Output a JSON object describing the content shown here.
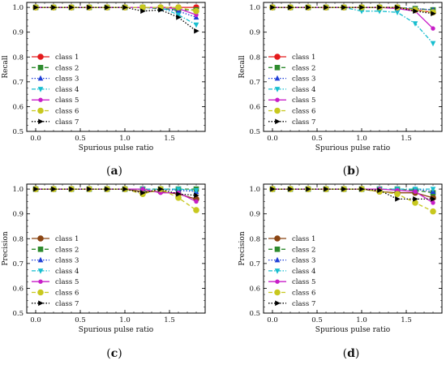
{
  "figure": {
    "captions": [
      "(a)",
      "(b)",
      "(c)",
      "(d)"
    ]
  },
  "chart_data": [
    {
      "type": "line",
      "panel": "a",
      "xlabel": "Spurious pulse ratio",
      "ylabel": "Recall",
      "xlim": [
        -0.1,
        1.9
      ],
      "ylim": [
        0.5,
        1.02
      ],
      "xticks": [
        0.0,
        0.5,
        1.0,
        1.5
      ],
      "yticks": [
        0.5,
        0.6,
        0.7,
        0.8,
        0.9,
        1.0
      ],
      "x": [
        0.0,
        0.2,
        0.4,
        0.6,
        0.8,
        1.0,
        1.2,
        1.4,
        1.6,
        1.8
      ],
      "legend_position": "lower-left",
      "series": [
        {
          "name": "class 1",
          "color": "#e41a1c",
          "marker": "circle",
          "dash": "solid",
          "values": [
            1,
            1,
            1,
            1,
            1,
            1,
            1,
            1,
            1,
            1
          ]
        },
        {
          "name": "class 2",
          "color": "#2e8b2e",
          "marker": "square",
          "dash": "dashed",
          "values": [
            1,
            1,
            1,
            1,
            1,
            1,
            1,
            0.995,
            0.99,
            0.99
          ]
        },
        {
          "name": "class 3",
          "color": "#1f3fd6",
          "marker": "triangle-up",
          "dash": "dotted",
          "values": [
            1,
            1,
            1,
            1,
            1,
            1,
            1,
            0.995,
            0.985,
            0.96
          ]
        },
        {
          "name": "class 4",
          "color": "#17becf",
          "marker": "triangle-down",
          "dash": "dashdot",
          "values": [
            1,
            1,
            1,
            1,
            1,
            1,
            1,
            1,
            0.97,
            0.93
          ]
        },
        {
          "name": "class 5",
          "color": "#c81ec8",
          "marker": "dot",
          "dash": "solid",
          "values": [
            1,
            1,
            1,
            1,
            1,
            1,
            1,
            1,
            0.995,
            0.97
          ]
        },
        {
          "name": "class 6",
          "color": "#c8c81e",
          "marker": "circle",
          "dash": "dashed",
          "values": [
            1,
            1,
            1,
            1,
            1,
            1,
            1,
            1,
            1,
            0.985
          ]
        },
        {
          "name": "class 7",
          "color": "#000000",
          "marker": "triangle-right",
          "dash": "dotted",
          "values": [
            1,
            1,
            1,
            1,
            1,
            1,
            0.985,
            0.99,
            0.96,
            0.905
          ]
        }
      ]
    },
    {
      "type": "line",
      "panel": "b",
      "xlabel": "Spurious pulse ratio",
      "ylabel": "Recall",
      "xlim": [
        -0.1,
        1.9
      ],
      "ylim": [
        0.5,
        1.02
      ],
      "xticks": [
        0.0,
        0.5,
        1.0,
        1.5
      ],
      "yticks": [
        0.5,
        0.6,
        0.7,
        0.8,
        0.9,
        1.0
      ],
      "x": [
        0.0,
        0.2,
        0.4,
        0.6,
        0.8,
        1.0,
        1.2,
        1.4,
        1.6,
        1.8
      ],
      "legend_position": "lower-left",
      "series": [
        {
          "name": "class 1",
          "color": "#e41a1c",
          "marker": "circle",
          "dash": "solid",
          "values": [
            1,
            1,
            1,
            1,
            1,
            1,
            1,
            1,
            0.99,
            0.98
          ]
        },
        {
          "name": "class 2",
          "color": "#2e8b2e",
          "marker": "square",
          "dash": "dashed",
          "values": [
            1,
            1,
            1,
            1,
            1,
            1,
            1,
            1,
            0.995,
            0.99
          ]
        },
        {
          "name": "class 3",
          "color": "#1f3fd6",
          "marker": "triangle-up",
          "dash": "dotted",
          "values": [
            1,
            1,
            1,
            1,
            1,
            1,
            1,
            1,
            0.995,
            0.99
          ]
        },
        {
          "name": "class 4",
          "color": "#17becf",
          "marker": "triangle-down",
          "dash": "dashdot",
          "values": [
            1,
            1,
            1,
            1,
            1,
            0.985,
            0.985,
            0.98,
            0.935,
            0.855
          ]
        },
        {
          "name": "class 5",
          "color": "#c81ec8",
          "marker": "dot",
          "dash": "solid",
          "values": [
            1,
            1,
            1,
            1,
            1,
            1,
            1,
            0.995,
            0.985,
            0.915
          ]
        },
        {
          "name": "class 6",
          "color": "#c8c81e",
          "marker": "circle",
          "dash": "dashed",
          "values": [
            1,
            1,
            1,
            1,
            1,
            1,
            1,
            1,
            0.99,
            0.98
          ]
        },
        {
          "name": "class 7",
          "color": "#000000",
          "marker": "triangle-right",
          "dash": "dotted",
          "values": [
            1,
            1,
            1,
            1,
            1,
            1,
            1,
            1,
            0.985,
            0.975
          ]
        }
      ]
    },
    {
      "type": "line",
      "panel": "c",
      "xlabel": "Spurious pulse ratio",
      "ylabel": "Precision",
      "xlim": [
        -0.1,
        1.9
      ],
      "ylim": [
        0.5,
        1.02
      ],
      "xticks": [
        0.0,
        0.5,
        1.0,
        1.5
      ],
      "yticks": [
        0.5,
        0.6,
        0.7,
        0.8,
        0.9,
        1.0
      ],
      "x": [
        0.0,
        0.2,
        0.4,
        0.6,
        0.8,
        1.0,
        1.2,
        1.4,
        1.6,
        1.8
      ],
      "legend_position": "lower-left",
      "series": [
        {
          "name": "class 1",
          "color": "#8b4513",
          "marker": "circle",
          "dash": "solid",
          "values": [
            1,
            1,
            1,
            1,
            1,
            1,
            0.99,
            0.99,
            0.98,
            0.96
          ]
        },
        {
          "name": "class 2",
          "color": "#2e8b2e",
          "marker": "square",
          "dash": "dashed",
          "values": [
            1,
            1,
            1,
            1,
            1,
            1,
            1,
            1,
            1,
            1
          ]
        },
        {
          "name": "class 3",
          "color": "#1f3fd6",
          "marker": "triangle-up",
          "dash": "dotted",
          "values": [
            1,
            1,
            1,
            1,
            1,
            1,
            1,
            1,
            0.995,
            0.99
          ]
        },
        {
          "name": "class 4",
          "color": "#17becf",
          "marker": "triangle-down",
          "dash": "dashdot",
          "values": [
            1,
            1,
            1,
            1,
            1,
            1,
            1,
            1,
            1,
            0.995
          ]
        },
        {
          "name": "class 5",
          "color": "#c81ec8",
          "marker": "dot",
          "dash": "solid",
          "values": [
            1,
            1,
            1,
            1,
            1,
            1,
            1,
            0.985,
            0.985,
            0.95
          ]
        },
        {
          "name": "class 6",
          "color": "#c8c81e",
          "marker": "circle",
          "dash": "dashed",
          "values": [
            1,
            1,
            1,
            1,
            1,
            1,
            0.98,
            1,
            0.965,
            0.915
          ]
        },
        {
          "name": "class 7",
          "color": "#000000",
          "marker": "triangle-right",
          "dash": "dotted",
          "values": [
            1,
            1,
            1,
            1,
            1,
            1,
            0.985,
            1,
            0.98,
            0.975
          ]
        }
      ]
    },
    {
      "type": "line",
      "panel": "d",
      "xlabel": "Spurious pulse ratio",
      "ylabel": "Precision",
      "xlim": [
        -0.1,
        1.9
      ],
      "ylim": [
        0.5,
        1.02
      ],
      "xticks": [
        0.0,
        0.5,
        1.0,
        1.5
      ],
      "yticks": [
        0.5,
        0.6,
        0.7,
        0.8,
        0.9,
        1.0
      ],
      "x": [
        0.0,
        0.2,
        0.4,
        0.6,
        0.8,
        1.0,
        1.2,
        1.4,
        1.6,
        1.8
      ],
      "legend_position": "lower-left",
      "series": [
        {
          "name": "class 1",
          "color": "#8b4513",
          "marker": "circle",
          "dash": "solid",
          "values": [
            1,
            1,
            1,
            1,
            1,
            1,
            0.99,
            0.985,
            0.985,
            0.965
          ]
        },
        {
          "name": "class 2",
          "color": "#2e8b2e",
          "marker": "square",
          "dash": "dashed",
          "values": [
            1,
            1,
            1,
            1,
            1,
            1,
            1,
            1,
            0.995,
            0.985
          ]
        },
        {
          "name": "class 3",
          "color": "#1f3fd6",
          "marker": "triangle-up",
          "dash": "dotted",
          "values": [
            1,
            1,
            1,
            1,
            1,
            1,
            1,
            1,
            1,
            0.99
          ]
        },
        {
          "name": "class 4",
          "color": "#17becf",
          "marker": "triangle-down",
          "dash": "dashdot",
          "values": [
            1,
            1,
            1,
            1,
            1,
            1,
            1,
            1,
            1,
            1
          ]
        },
        {
          "name": "class 5",
          "color": "#c81ec8",
          "marker": "dot",
          "dash": "solid",
          "values": [
            1,
            1,
            1,
            1,
            1,
            1,
            1,
            0.995,
            0.99,
            0.945
          ]
        },
        {
          "name": "class 6",
          "color": "#c8c81e",
          "marker": "circle",
          "dash": "dashed",
          "values": [
            1,
            1,
            1,
            1,
            1,
            1,
            0.99,
            0.98,
            0.945,
            0.91
          ]
        },
        {
          "name": "class 7",
          "color": "#000000",
          "marker": "triangle-right",
          "dash": "dotted",
          "values": [
            1,
            1,
            1,
            1,
            1,
            1,
            0.995,
            0.96,
            0.96,
            0.96
          ]
        }
      ]
    }
  ]
}
